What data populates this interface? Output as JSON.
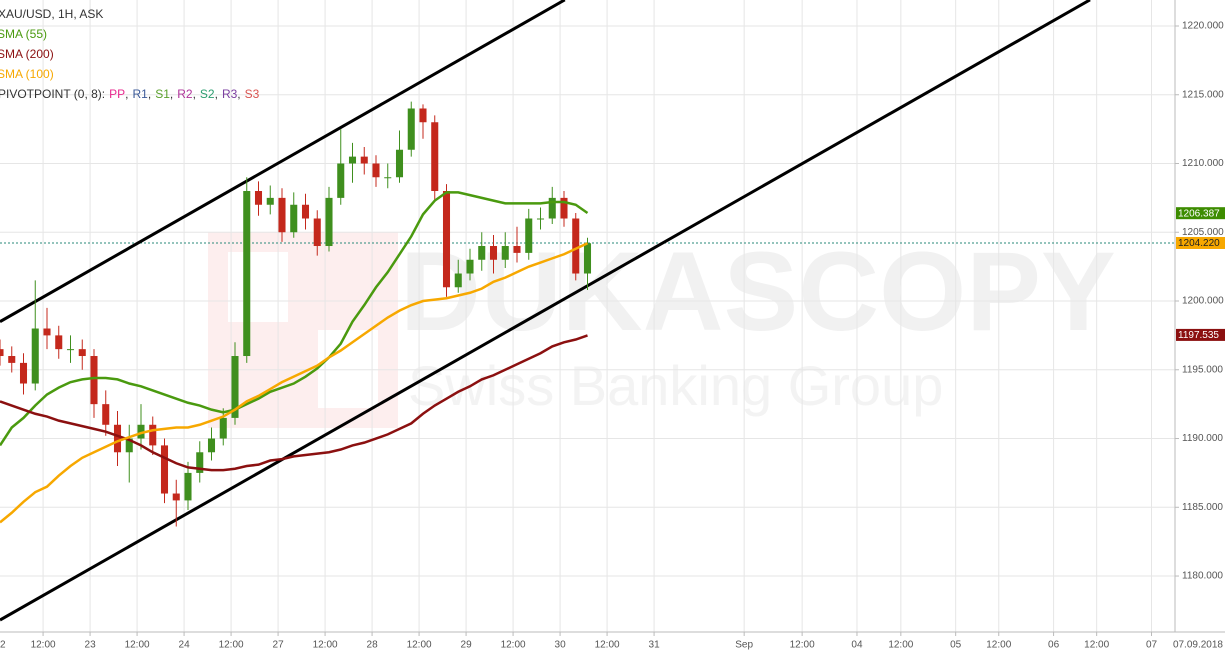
{
  "chart_data": {
    "type": "candlestick",
    "title": "XAU/USD, 1H, ASK",
    "watermark": "DUKASCOPY",
    "watermark_subtitle": "Swiss Banking Group",
    "x": [
      1,
      4,
      7,
      10,
      13,
      16,
      19,
      22,
      25,
      28,
      31,
      34,
      37,
      40,
      43,
      46,
      49,
      52,
      55,
      58,
      61,
      64,
      67,
      70,
      73,
      76,
      79,
      82,
      85,
      88,
      91,
      94,
      97,
      100,
      103,
      106,
      109,
      112,
      115,
      118,
      121,
      124,
      127,
      130,
      133,
      136,
      139,
      142,
      145,
      148,
      151
    ],
    "open": [
      1196.5,
      1196,
      1195.5,
      1194,
      1198,
      1197.5,
      1196.5,
      1196.5,
      1196,
      1192.5,
      1191,
      1189,
      1190,
      1191,
      1189.5,
      1186,
      1185.5,
      1187.5,
      1189,
      1190,
      1191.5,
      1196,
      1208,
      1207,
      1207.5,
      1205,
      1207,
      1206,
      1204,
      1207.5,
      1210,
      1210.5,
      1210,
      1209,
      1209,
      1211,
      1214,
      1213,
      1208,
      1201,
      1202,
      1203,
      1204,
      1203,
      1204,
      1203.5,
      1206,
      1206,
      1207.5,
      1206,
      1202
    ],
    "high": [
      1197.2,
      1196.7,
      1196.2,
      1201.5,
      1199.5,
      1198.2,
      1197.5,
      1197.2,
      1196.5,
      1193.5,
      1192,
      1191,
      1192.5,
      1191.6,
      1190,
      1187,
      1188.3,
      1189.8,
      1190.8,
      1192.2,
      1197,
      1209,
      1208.7,
      1208.4,
      1208.2,
      1207.9,
      1207.8,
      1206.6,
      1208.3,
      1212.5,
      1211.5,
      1211.2,
      1210.6,
      1210,
      1212.4,
      1214.5,
      1214.3,
      1213.5,
      1208.5,
      1203,
      1203.8,
      1205,
      1204.8,
      1205,
      1205.4,
      1206.7,
      1206.8,
      1208.3,
      1208,
      1206.4,
      1204.6
    ],
    "low": [
      1195.3,
      1194.8,
      1193.2,
      1193.5,
      1196.5,
      1195.8,
      1195.5,
      1195,
      1191.5,
      1190.2,
      1188,
      1186.8,
      1189.2,
      1188.8,
      1185.3,
      1183.6,
      1184.8,
      1186.8,
      1188.4,
      1189.5,
      1191,
      1195.5,
      1206.2,
      1206.3,
      1204.3,
      1204.6,
      1205.2,
      1203.3,
      1203.6,
      1207,
      1208.6,
      1209.2,
      1208.3,
      1208.2,
      1208.6,
      1210.5,
      1211.8,
      1207.2,
      1200.3,
      1200.6,
      1201.5,
      1202.2,
      1202,
      1202.4,
      1202.8,
      1203,
      1205.2,
      1205.6,
      1205.4,
      1201.5,
      1200.8
    ],
    "close": [
      1196,
      1195.5,
      1194,
      1198,
      1197.5,
      1196.5,
      1196.5,
      1196,
      1192.5,
      1191,
      1189,
      1190,
      1191,
      1189.5,
      1186,
      1185.5,
      1187.5,
      1189,
      1190,
      1191.5,
      1196,
      1208,
      1207,
      1207.5,
      1205,
      1207,
      1206,
      1204,
      1207.5,
      1210,
      1210.5,
      1210,
      1209,
      1209,
      1211,
      1214,
      1213,
      1208,
      1201,
      1202,
      1203,
      1204,
      1203,
      1204,
      1203.5,
      1206,
      1206,
      1207.5,
      1206,
      1202,
      1204.2
    ],
    "up_color": "#3f8f1e",
    "down_color": "#c4281c",
    "series": [
      {
        "name": "SMA (55)",
        "color": "#4a9a0f",
        "values": [
          1189.5,
          1190.8,
          1191.5,
          1192.4,
          1193.2,
          1193.7,
          1194.1,
          1194.3,
          1194.4,
          1194.4,
          1194.3,
          1194,
          1193.8,
          1193.5,
          1193.2,
          1192.9,
          1192.6,
          1192.4,
          1192.1,
          1191.9,
          1192.1,
          1192.5,
          1192.9,
          1193.4,
          1193.7,
          1194,
          1194.5,
          1195.1,
          1195.9,
          1196.9,
          1198.5,
          1199.7,
          1201,
          1202.1,
          1203.4,
          1204.7,
          1206.3,
          1207.3,
          1207.9,
          1207.9,
          1207.7,
          1207.5,
          1207.3,
          1207.1,
          1207.1,
          1207.1,
          1207.1,
          1207.2,
          1207.2,
          1207,
          1206.4
        ]
      },
      {
        "name": "SMA (200)",
        "color": "#8b1010",
        "values": [
          1192.7,
          1192.4,
          1192.1,
          1191.8,
          1191.6,
          1191.3,
          1191.1,
          1190.9,
          1190.7,
          1190.5,
          1190.2,
          1189.9,
          1189.5,
          1189,
          1188.6,
          1188.2,
          1187.9,
          1187.8,
          1187.7,
          1187.7,
          1187.8,
          1188,
          1188.1,
          1188.4,
          1188.5,
          1188.7,
          1188.8,
          1188.9,
          1189,
          1189.2,
          1189.5,
          1189.7,
          1190,
          1190.3,
          1190.7,
          1191.1,
          1191.8,
          1192.4,
          1192.9,
          1193.4,
          1193.8,
          1194.3,
          1194.6,
          1195,
          1195.4,
          1195.8,
          1196.2,
          1196.7,
          1197,
          1197.2,
          1197.5
        ]
      },
      {
        "name": "SMA (100)",
        "color": "#f7a800",
        "values": [
          1183.9,
          1184.6,
          1185.4,
          1186.1,
          1186.5,
          1187.3,
          1188,
          1188.6,
          1189,
          1189.4,
          1189.8,
          1190.1,
          1190.4,
          1190.6,
          1190.7,
          1190.8,
          1190.8,
          1191,
          1191.3,
          1191.6,
          1192.1,
          1192.7,
          1193.1,
          1193.6,
          1194.1,
          1194.5,
          1194.9,
          1195.3,
          1195.9,
          1196.4,
          1197,
          1197.6,
          1198.2,
          1198.8,
          1199.3,
          1199.7,
          1200,
          1200.1,
          1200.2,
          1200.4,
          1200.6,
          1200.9,
          1201.4,
          1201.7,
          1202.1,
          1202.5,
          1202.8,
          1203.1,
          1203.4,
          1203.8,
          1204.2
        ]
      }
    ],
    "pivot_label": "PIVOTPOINT (0, 8):",
    "pivot_items": [
      {
        "name": "PP",
        "color": "#e8288e"
      },
      {
        "name": "R1",
        "color": "#3b5998"
      },
      {
        "name": "S1",
        "color": "#5aa02c"
      },
      {
        "name": "R2",
        "color": "#b0359b"
      },
      {
        "name": "S2",
        "color": "#2a9d6f"
      },
      {
        "name": "R3",
        "color": "#7b3fa0"
      },
      {
        "name": "S3",
        "color": "#d9534f"
      }
    ],
    "trendlines": [
      {
        "x": [
          1,
          145.2
        ],
        "y": [
          1198.5,
          1221.9
        ],
        "color": "#000000"
      },
      {
        "x": [
          1,
          279.3
        ],
        "y": [
          1176.8,
          1221.9
        ],
        "color": "#000000"
      }
    ],
    "price_markers": [
      {
        "value": 1206.387,
        "label": "1206.387",
        "color": "#3d8c00"
      },
      {
        "value": 1204.22,
        "label": "1204.220",
        "color": "#f7a800"
      },
      {
        "value": 1197.535,
        "label": "1197.535",
        "color": "#8b1010"
      }
    ],
    "current_price": 1204.22,
    "xlim": [
      1,
      301
    ],
    "ylim": [
      1175.93,
      1221.89
    ],
    "yticks": [
      {
        "value": 1180,
        "label": "1180.000"
      },
      {
        "value": 1185,
        "label": "1185.000"
      },
      {
        "value": 1190,
        "label": "1190.000"
      },
      {
        "value": 1195,
        "label": "1195.000"
      },
      {
        "value": 1200,
        "label": "1200.000"
      },
      {
        "value": 1205,
        "label": "1205.000"
      },
      {
        "value": 1210,
        "label": "1210.000"
      },
      {
        "value": 1215,
        "label": "1215.000"
      },
      {
        "value": 1220,
        "label": "1220.000"
      }
    ],
    "xticks": [
      {
        "value": 0,
        "label": "2"
      },
      {
        "value": 12,
        "label": "12:00"
      },
      {
        "value": 24,
        "label": "23"
      },
      {
        "value": 36,
        "label": "12:00"
      },
      {
        "value": 48,
        "label": "24"
      },
      {
        "value": 60,
        "label": "12:00"
      },
      {
        "value": 72,
        "label": "27"
      },
      {
        "value": 84,
        "label": "12:00"
      },
      {
        "value": 96,
        "label": "28"
      },
      {
        "value": 108,
        "label": "12:00"
      },
      {
        "value": 120,
        "label": "29"
      },
      {
        "value": 132,
        "label": "12:00"
      },
      {
        "value": 144,
        "label": "30"
      },
      {
        "value": 156,
        "label": "12:00"
      },
      {
        "value": 168,
        "label": "31"
      },
      {
        "value": 191,
        "label": "Sep"
      },
      {
        "value": 205.8,
        "label": "12:00"
      },
      {
        "value": 219.8,
        "label": "04"
      },
      {
        "value": 231,
        "label": "12:00"
      },
      {
        "value": 245,
        "label": "05"
      },
      {
        "value": 256,
        "label": "12:00"
      },
      {
        "value": 270,
        "label": "06"
      },
      {
        "value": 281,
        "label": "12:00"
      },
      {
        "value": 295,
        "label": "07"
      }
    ],
    "x_end_label": "07.09.2018",
    "grid": true
  }
}
